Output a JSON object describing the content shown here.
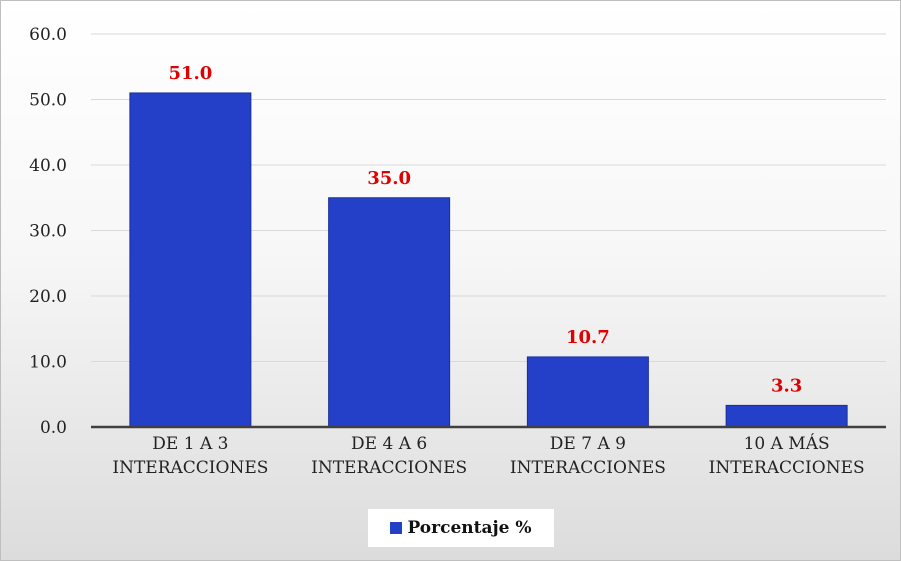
{
  "chart_data": {
    "type": "bar",
    "categories": [
      [
        "DE 1 A 3",
        "INTERACCIONES"
      ],
      [
        "DE 4 A 6",
        "INTERACCIONES"
      ],
      [
        "DE 7 A 9",
        "INTERACCIONES"
      ],
      [
        "10 A MÁS",
        "INTERACCIONES"
      ]
    ],
    "series": [
      {
        "name": "Porcentaje %",
        "values": [
          51.0,
          35.0,
          10.7,
          3.3
        ]
      }
    ],
    "data_labels": [
      "51.0",
      "35.0",
      "10.7",
      "3.3"
    ],
    "y_ticks": [
      "0.0",
      "10.0",
      "20.0",
      "30.0",
      "40.0",
      "50.0",
      "60.0"
    ],
    "ylim": [
      0,
      60
    ],
    "title": "",
    "xlabel": "",
    "ylabel": "",
    "grid": true,
    "legend": "bottom",
    "colors": {
      "bar": "#2440c8",
      "bar_border": "#1a2f9a",
      "data_label": "#e00000",
      "grid": "#d9d9d9",
      "axis": "#404040"
    }
  }
}
